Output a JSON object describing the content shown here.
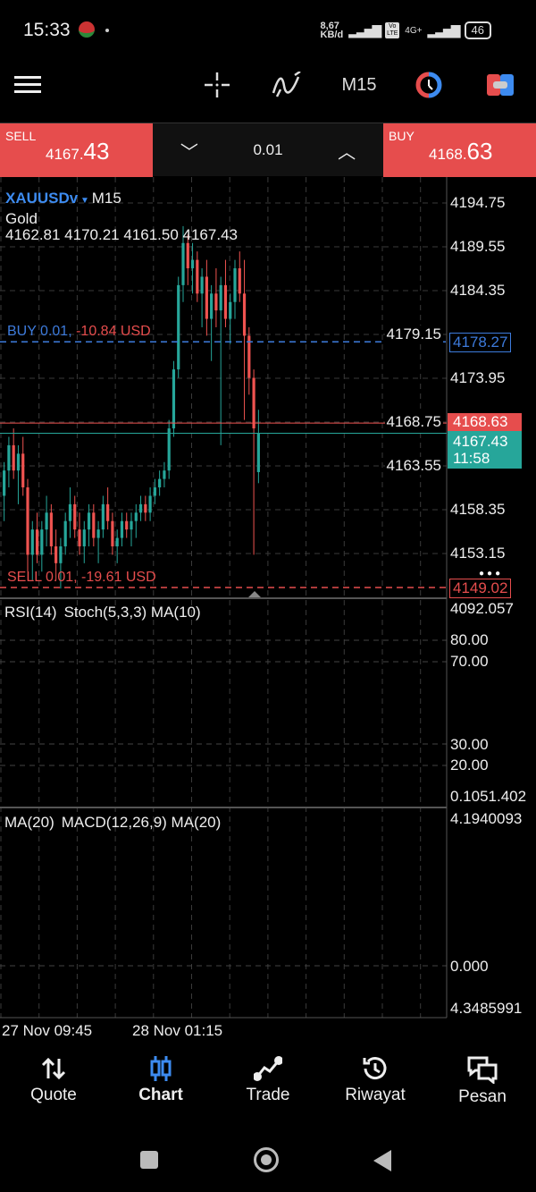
{
  "status_bar": {
    "time": "15:33",
    "net_speed_value": "8,67",
    "net_speed_unit": "KB/d",
    "volte": "Vo LTE",
    "network": "4G+",
    "battery": "46"
  },
  "toolbar": {
    "timeframe": "M15",
    "icons": [
      "menu-icon",
      "crosshair-icon",
      "indicators-icon",
      "timeframe-label",
      "one-click-trading-icon",
      "trade-panel-icon"
    ]
  },
  "trade_bar": {
    "sell_label": "SELL",
    "sell_price_main": "4167.",
    "sell_price_big": "43",
    "buy_label": "BUY",
    "buy_price_main": "4168.",
    "buy_price_big": "63",
    "volume": "0.01"
  },
  "chart": {
    "symbol": "XAUUSDv",
    "timeframe": "M15",
    "description": "Gold",
    "ohlc": "4162.81 4170.21 4161.50 4167.43",
    "buy_line_label": "BUY 0.01,",
    "buy_line_pl": "-10.84 USD",
    "sell_line_label": "SELL 0.01,",
    "sell_line_pl": "-19.61 USD",
    "buy_price_tag": "4178.27",
    "sell_price_tag": "4149.02",
    "ask_tag": "4168.63",
    "bid_tag": "4167.43",
    "countdown": "11:58",
    "colors": {
      "bull": "#26a69a",
      "bear": "#ef5350",
      "buy_line": "#3d7bdc",
      "sell_line": "#e64d4d"
    }
  },
  "chart_data": {
    "type": "candlestick",
    "y_ticks": [
      "4194.75",
      "4189.55",
      "4184.35",
      "4179.15",
      "4173.95",
      "4168.75",
      "4163.55",
      "4158.35",
      "4153.15"
    ],
    "ylim": [
      4147.5,
      4199.5
    ],
    "x_labels": [
      "27 Nov 09:45",
      "28 Nov 01:15"
    ],
    "grid": true,
    "candles": [
      [
        4160,
        4164,
        4157,
        4163
      ],
      [
        4163,
        4167,
        4161,
        4166
      ],
      [
        4166,
        4168,
        4162,
        4163
      ],
      [
        4163,
        4166,
        4159,
        4165
      ],
      [
        4165,
        4167,
        4160,
        4161
      ],
      [
        4161,
        4162,
        4151,
        4153
      ],
      [
        4153,
        4157,
        4150,
        4156
      ],
      [
        4156,
        4158,
        4152,
        4153
      ],
      [
        4153,
        4157,
        4151,
        4156
      ],
      [
        4156,
        4160,
        4154,
        4158
      ],
      [
        4158,
        4159,
        4153,
        4154
      ],
      [
        4154,
        4156,
        4150,
        4152
      ],
      [
        4152,
        4155,
        4149,
        4154
      ],
      [
        4154,
        4158,
        4153,
        4157
      ],
      [
        4157,
        4161,
        4155,
        4159
      ],
      [
        4159,
        4160,
        4155,
        4156
      ],
      [
        4156,
        4158,
        4153,
        4154
      ],
      [
        4154,
        4157,
        4152,
        4156
      ],
      [
        4156,
        4159,
        4154,
        4158
      ],
      [
        4158,
        4159,
        4154,
        4155
      ],
      [
        4155,
        4157,
        4152,
        4156
      ],
      [
        4156,
        4160,
        4155,
        4159
      ],
      [
        4159,
        4161,
        4156,
        4157
      ],
      [
        4157,
        4158,
        4153,
        4154
      ],
      [
        4154,
        4156,
        4152,
        4155
      ],
      [
        4155,
        4158,
        4154,
        4157
      ],
      [
        4157,
        4158,
        4155,
        4156
      ],
      [
        4156,
        4158,
        4154,
        4157
      ],
      [
        4157,
        4159,
        4155,
        4158
      ],
      [
        4158,
        4160,
        4157,
        4159
      ],
      [
        4159,
        4160,
        4157,
        4158
      ],
      [
        4158,
        4161,
        4157,
        4160
      ],
      [
        4160,
        4162,
        4159,
        4161
      ],
      [
        4161,
        4163,
        4160,
        4162
      ],
      [
        4162,
        4164,
        4161,
        4163
      ],
      [
        4163,
        4169,
        4162,
        4168
      ],
      [
        4168,
        4176,
        4167,
        4175
      ],
      [
        4175,
        4186,
        4174,
        4185
      ],
      [
        4185,
        4192,
        4183,
        4190
      ],
      [
        4190,
        4191,
        4185,
        4187
      ],
      [
        4187,
        4190,
        4184,
        4188
      ],
      [
        4188,
        4189,
        4183,
        4184
      ],
      [
        4184,
        4187,
        4180,
        4186
      ],
      [
        4186,
        4188,
        4179,
        4181
      ],
      [
        4181,
        4185,
        4176,
        4184
      ],
      [
        4184,
        4187,
        4180,
        4182
      ],
      [
        4182,
        4186,
        4166,
        4185
      ],
      [
        4185,
        4188,
        4180,
        4181
      ],
      [
        4181,
        4184,
        4178,
        4183
      ],
      [
        4183,
        4188,
        4181,
        4187
      ],
      [
        4187,
        4189,
        4183,
        4184
      ],
      [
        4184,
        4188,
        4169,
        4179
      ],
      [
        4179,
        4180,
        4172,
        4174
      ],
      [
        4174,
        4175,
        4153,
        4168
      ],
      [
        4162.81,
        4170.21,
        4161.5,
        4167.43
      ]
    ],
    "price_lines": {
      "buy": 4178.27,
      "ask": 4168.63,
      "bid": 4167.43,
      "sell": 4149.02
    }
  },
  "indicator1": {
    "legend_a": "RSI(14)",
    "legend_b": "Stoch(5,3,3) MA(10)",
    "top_value": "4092.057",
    "levels": [
      "80.00",
      "70.00",
      "30.00",
      "20.00"
    ],
    "bottom_value": "0.1051.402"
  },
  "indicator2": {
    "legend_a": "MA(20)",
    "legend_b": "MACD(12,26,9) MA(20)",
    "top_value": "4.1940093",
    "zero": "0.000",
    "bottom_value": "4.3485991"
  },
  "bottom_nav": [
    {
      "label": "Quote",
      "icon": "quote-arrows-icon"
    },
    {
      "label": "Chart",
      "icon": "chart-candles-icon",
      "active": true
    },
    {
      "label": "Trade",
      "icon": "trade-line-icon"
    },
    {
      "label": "Riwayat",
      "icon": "history-icon"
    },
    {
      "label": "Pesan",
      "icon": "messages-icon"
    }
  ]
}
